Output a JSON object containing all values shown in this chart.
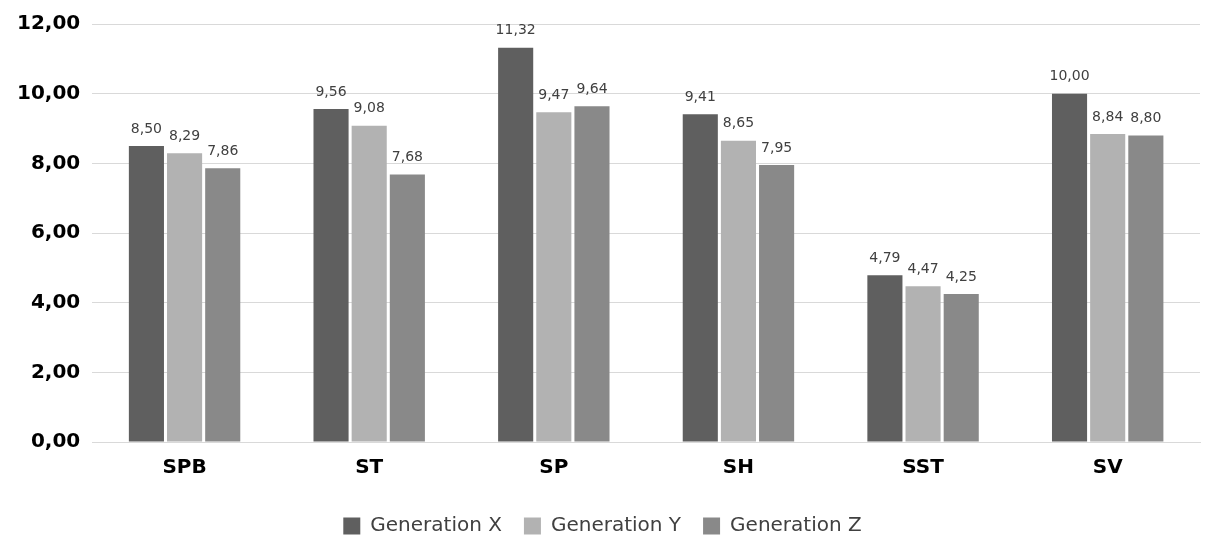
{
  "chart_data": {
    "type": "bar",
    "categories": [
      "SPB",
      "ST",
      "SP",
      "SH",
      "SST",
      "SV"
    ],
    "series": [
      {
        "name": "Generation X",
        "color": "#5f5f5f",
        "values": [
          8.5,
          9.56,
          11.32,
          9.41,
          4.79,
          10.0
        ],
        "value_labels": [
          "8,50",
          "9,56",
          "11,32",
          "9,41",
          "4,79",
          "10,00"
        ]
      },
      {
        "name": "Generation Y",
        "color": "#b2b2b2",
        "values": [
          8.29,
          9.08,
          9.47,
          8.65,
          4.47,
          8.84
        ],
        "value_labels": [
          "8,29",
          "9,08",
          "9,47",
          "8,65",
          "4,47",
          "8,84"
        ]
      },
      {
        "name": "Generation Z",
        "color": "#898989",
        "values": [
          7.86,
          7.68,
          9.64,
          7.95,
          4.25,
          8.8
        ],
        "value_labels": [
          "7,86",
          "7,68",
          "9,64",
          "7,95",
          "4,25",
          "8,80"
        ]
      }
    ],
    "ylim": [
      0,
      12
    ],
    "yticks": [
      {
        "value": 0,
        "label": "0,00"
      },
      {
        "value": 2,
        "label": "2,00"
      },
      {
        "value": 4,
        "label": "4,00"
      },
      {
        "value": 6,
        "label": "6,00"
      },
      {
        "value": 8,
        "label": "8,00"
      },
      {
        "value": 10,
        "label": "10,00"
      },
      {
        "value": 12,
        "label": "12,00"
      }
    ],
    "grid": "y",
    "legend": "bottom"
  }
}
